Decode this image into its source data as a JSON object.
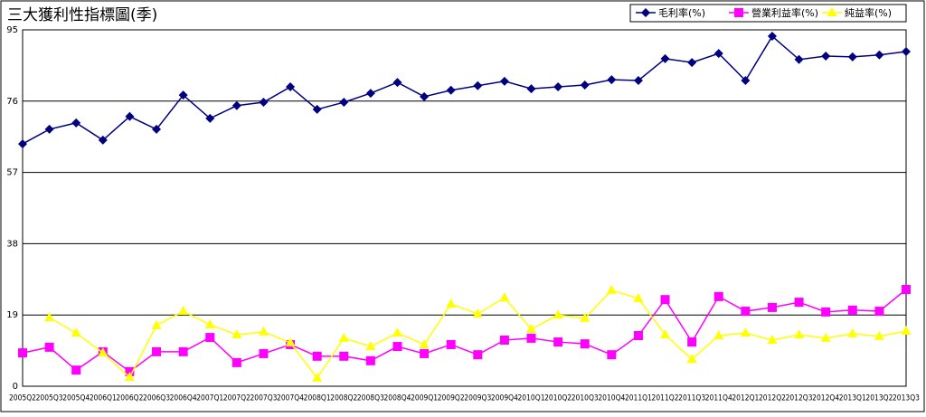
{
  "chart_data": {
    "type": "line",
    "title": "三大獲利性指標圖(季)",
    "categories": [
      "2005Q2",
      "2005Q3",
      "2005Q4",
      "2006Q1",
      "2006Q2",
      "2006Q3",
      "2006Q4",
      "2007Q1",
      "2007Q2",
      "2007Q3",
      "2007Q4",
      "2008Q1",
      "2008Q2",
      "2008Q3",
      "2008Q4",
      "2009Q1",
      "2009Q2",
      "2009Q3",
      "2009Q4",
      "2010Q1",
      "2010Q2",
      "2010Q3",
      "2010Q4",
      "2011Q1",
      "2011Q2",
      "2011Q3",
      "2011Q4",
      "2012Q1",
      "2012Q2",
      "2012Q3",
      "2012Q4",
      "2013Q1",
      "2013Q2",
      "2013Q3"
    ],
    "series": [
      {
        "name": "毛利率(%)",
        "color": "#000080",
        "marker": "diamond",
        "values": [
          64.6,
          68.5,
          70.2,
          65.6,
          71.9,
          68.5,
          77.6,
          71.4,
          74.8,
          75.7,
          79.8,
          73.8,
          75.7,
          78.1,
          81.0,
          77.2,
          78.9,
          80.1,
          81.3,
          79.3,
          79.8,
          80.3,
          81.7,
          81.5,
          87.3,
          86.3,
          88.7,
          81.5,
          93.3,
          87.1,
          88.0,
          87.8,
          88.3,
          89.2
        ]
      },
      {
        "name": "營業利益率(%)",
        "color": "#ff00ff",
        "marker": "square",
        "values": [
          8.9,
          10.4,
          4.3,
          9.2,
          3.9,
          9.2,
          9.2,
          13.0,
          6.3,
          8.7,
          11.1,
          8.0,
          8.0,
          6.8,
          10.6,
          8.7,
          11.1,
          8.4,
          12.3,
          12.8,
          11.8,
          11.3,
          8.4,
          13.5,
          23.1,
          11.8,
          23.9,
          20.0,
          21.0,
          22.4,
          19.8,
          20.3,
          20.0,
          25.8
        ]
      },
      {
        "name": "純益率(%)",
        "color": "#ffff00",
        "marker": "triangle",
        "values": [
          null,
          18.3,
          14.2,
          8.9,
          2.4,
          16.2,
          20.0,
          16.4,
          13.7,
          14.5,
          11.6,
          2.2,
          12.8,
          10.6,
          14.2,
          11.1,
          21.9,
          19.3,
          23.6,
          15.2,
          19.0,
          18.1,
          25.6,
          23.4,
          13.7,
          7.2,
          13.5,
          14.2,
          12.3,
          13.7,
          12.8,
          14.0,
          13.3,
          14.7
        ]
      }
    ],
    "ylim": [
      0,
      95
    ],
    "yticks": [
      0,
      19,
      38,
      57,
      76,
      95
    ],
    "grid": true,
    "legend": "top-right"
  }
}
